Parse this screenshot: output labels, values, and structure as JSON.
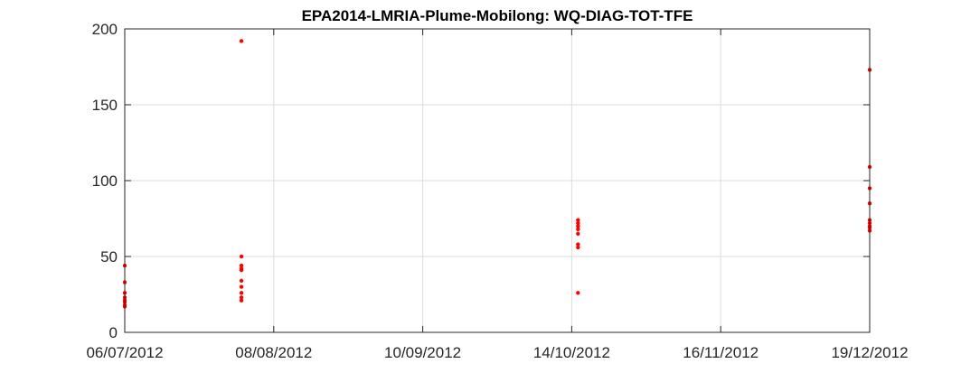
{
  "chart_data": {
    "type": "scatter",
    "title": "EPA2014-LMRIA-Plume-Mobilong: WQ-DIAG-TOT-TFE",
    "xlabel": "",
    "ylabel": "",
    "x_axis": {
      "scale": "date",
      "range": [
        "2012-07-06",
        "2012-12-19"
      ],
      "tick_labels": [
        "06/07/2012",
        "08/08/2012",
        "10/09/2012",
        "14/10/2012",
        "16/11/2012",
        "19/12/2012"
      ]
    },
    "y_axis": {
      "range": [
        0,
        200
      ],
      "tick_labels": [
        "0",
        "50",
        "100",
        "150",
        "200"
      ]
    },
    "grid": true,
    "legend": "none",
    "marker_color": "#ff0000",
    "series": [
      {
        "points": [
          {
            "x": "2012-07-06",
            "y": 44
          },
          {
            "x": "2012-07-06",
            "y": 33
          },
          {
            "x": "2012-07-06",
            "y": 26
          },
          {
            "x": "2012-07-06",
            "y": 23
          },
          {
            "x": "2012-07-06",
            "y": 21
          },
          {
            "x": "2012-07-06",
            "y": 20
          },
          {
            "x": "2012-07-06",
            "y": 18
          },
          {
            "x": "2012-07-06",
            "y": 17
          },
          {
            "x": "2012-08-01",
            "y": 192
          },
          {
            "x": "2012-08-01",
            "y": 50
          },
          {
            "x": "2012-08-01",
            "y": 44
          },
          {
            "x": "2012-08-01",
            "y": 42
          },
          {
            "x": "2012-08-01",
            "y": 41
          },
          {
            "x": "2012-08-01",
            "y": 34
          },
          {
            "x": "2012-08-01",
            "y": 30
          },
          {
            "x": "2012-08-01",
            "y": 26
          },
          {
            "x": "2012-08-01",
            "y": 23
          },
          {
            "x": "2012-08-01",
            "y": 21
          },
          {
            "x": "2012-10-15",
            "y": 74
          },
          {
            "x": "2012-10-15",
            "y": 72
          },
          {
            "x": "2012-10-15",
            "y": 70
          },
          {
            "x": "2012-10-15",
            "y": 68
          },
          {
            "x": "2012-10-15",
            "y": 65
          },
          {
            "x": "2012-10-15",
            "y": 58
          },
          {
            "x": "2012-10-15",
            "y": 56
          },
          {
            "x": "2012-10-15",
            "y": 26
          },
          {
            "x": "2012-12-19",
            "y": 173
          },
          {
            "x": "2012-12-19",
            "y": 109
          },
          {
            "x": "2012-12-19",
            "y": 95
          },
          {
            "x": "2012-12-19",
            "y": 85
          },
          {
            "x": "2012-12-19",
            "y": 74
          },
          {
            "x": "2012-12-19",
            "y": 72
          },
          {
            "x": "2012-12-19",
            "y": 70
          },
          {
            "x": "2012-12-19",
            "y": 69
          },
          {
            "x": "2012-12-19",
            "y": 67
          }
        ]
      }
    ]
  }
}
